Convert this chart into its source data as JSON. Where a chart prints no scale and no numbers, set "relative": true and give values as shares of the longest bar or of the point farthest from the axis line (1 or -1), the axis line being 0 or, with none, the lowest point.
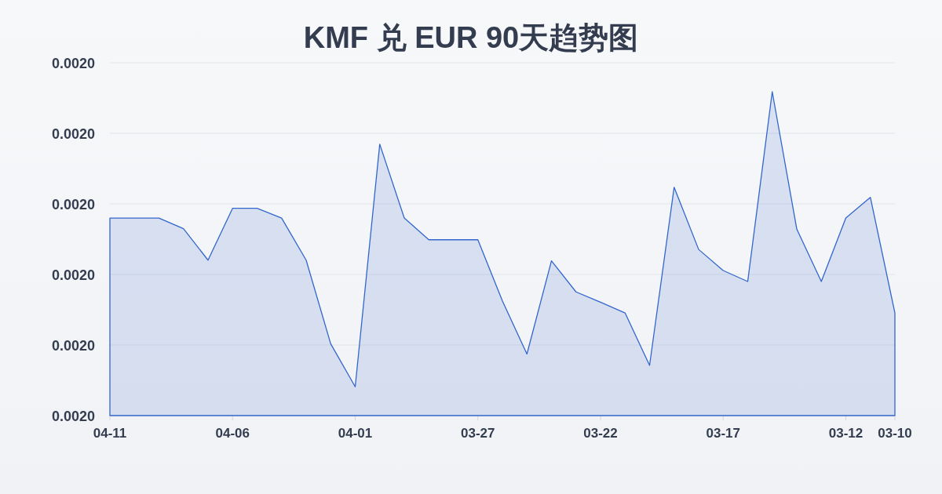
{
  "chart_data": {
    "type": "area",
    "title": "KMF 兑 EUR 90天趋势图",
    "relative": true,
    "categories": [
      "04-11",
      null,
      null,
      null,
      null,
      "04-06",
      null,
      null,
      null,
      null,
      "04-01",
      null,
      null,
      null,
      null,
      "03-27",
      null,
      null,
      null,
      null,
      "03-22",
      null,
      null,
      null,
      null,
      "03-17",
      null,
      null,
      null,
      null,
      "03-12",
      null,
      "03-10"
    ],
    "values": [
      0.61,
      0.61,
      0.61,
      0.577,
      0.48,
      0.64,
      0.64,
      0.61,
      0.48,
      0.222,
      0.089,
      0.838,
      0.61,
      0.543,
      0.543,
      0.543,
      0.354,
      0.19,
      0.478,
      0.382,
      0.35,
      0.317,
      0.155,
      0.705,
      0.513,
      0.448,
      0.414,
      1,
      0.576,
      0.414,
      0.61,
      0.674,
      0.317
    ],
    "color": "#3366cc",
    "annotations": [
      "0.0020",
      "0.0020",
      "0.0020",
      "0.0020",
      "0.0020",
      "0.0020"
    ],
    "grid": "y"
  }
}
